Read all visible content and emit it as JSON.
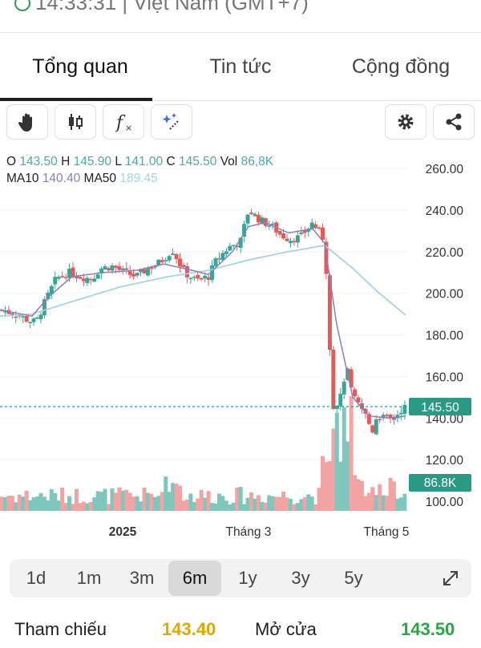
{
  "status": {
    "clock_text": "14:33:31 | Việt Nam (GMT+7)"
  },
  "tabs": [
    {
      "label": "Tổng quan",
      "active": true
    },
    {
      "label": "Tin tức",
      "active": false
    },
    {
      "label": "Cộng đồng",
      "active": false
    }
  ],
  "toolbar": {
    "icons": [
      "hand-icon",
      "candle-icon",
      "function-icon",
      "magic-icon",
      "gear-icon",
      "share-icon"
    ]
  },
  "legend": {
    "o_label": "O",
    "o_value": "143.50",
    "h_label": "H",
    "h_value": "145.90",
    "l_label": "L",
    "l_value": "141.00",
    "c_label": "C",
    "c_value": "145.50",
    "vol_label": "Vol",
    "vol_value": "86,8K",
    "ma10_label": "MA10",
    "ma10_value": "140.40",
    "ma50_label": "MA50",
    "ma50_value": "189.45"
  },
  "chart_data": {
    "type": "candlestick",
    "y_ticks": [
      "260.00",
      "240.00",
      "220.00",
      "200.00",
      "180.00",
      "160.00",
      "140.00",
      "120.00",
      "100.00"
    ],
    "ylim": [
      100,
      260
    ],
    "x_labels": [
      "2025",
      "Tháng 3",
      "Tháng 5"
    ],
    "last_price_label": "145.50",
    "last_price": 145.5,
    "volume_label": "86.8K",
    "colors": {
      "up": "#3aa597",
      "down": "#e25b5b",
      "ma10": "#8e7bbf",
      "ma50": "#a6d3e3",
      "price_line": "#2a9a85"
    }
  },
  "periods": [
    {
      "label": "1d",
      "active": false
    },
    {
      "label": "1m",
      "active": false
    },
    {
      "label": "3m",
      "active": false
    },
    {
      "label": "6m",
      "active": true
    },
    {
      "label": "1y",
      "active": false
    },
    {
      "label": "3y",
      "active": false
    },
    {
      "label": "5y",
      "active": false
    }
  ],
  "stats": {
    "ref_label": "Tham chiếu",
    "ref_value": "143.40",
    "open_label": "Mở cửa",
    "open_value": "143.50",
    "ref_color": "#e0a800",
    "open_color": "#27a844"
  }
}
